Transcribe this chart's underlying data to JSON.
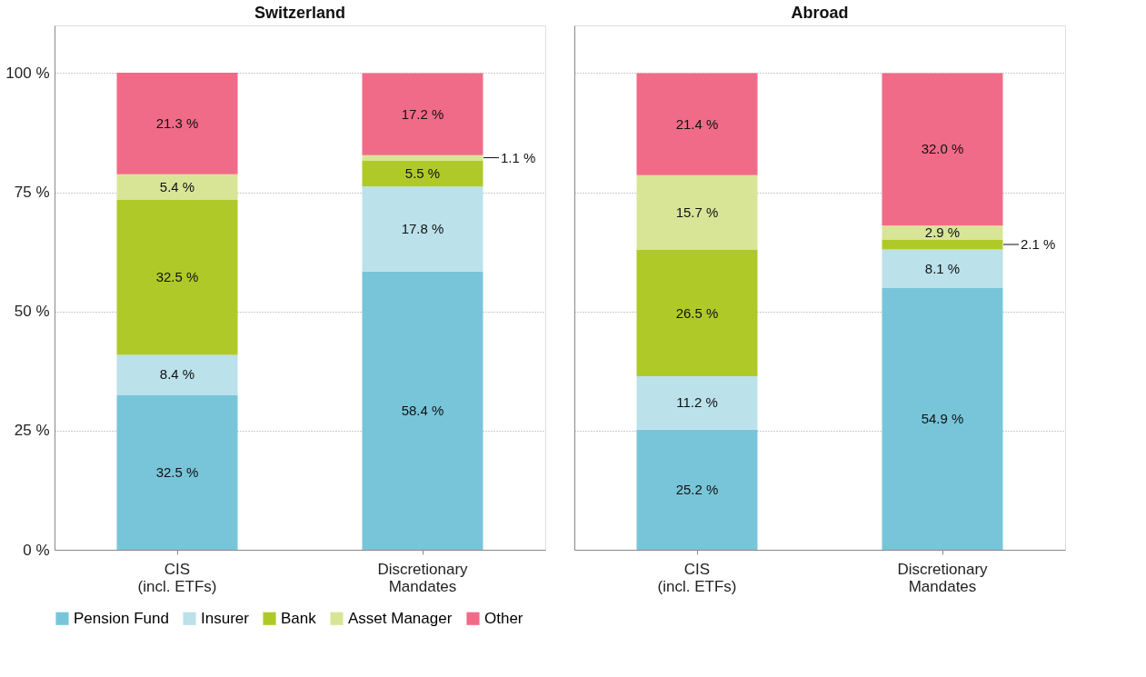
{
  "chart_data": [
    {
      "type": "bar",
      "stacked": true,
      "title": "Switzerland",
      "categories": [
        "CIS (incl. ETFs)",
        "Discretionary Mandates"
      ],
      "ylim": [
        0,
        110
      ],
      "yticks": [
        {
          "value": 0,
          "label": "0 %"
        },
        {
          "value": 25,
          "label": "25 %"
        },
        {
          "value": 50,
          "label": "50 %"
        },
        {
          "value": 75,
          "label": "75 %"
        },
        {
          "value": 100,
          "label": "100 %"
        }
      ],
      "grid": "y",
      "legend": "bottom",
      "series": [
        {
          "name": "Pension Fund",
          "color": "#78c5d9",
          "values": [
            32.5,
            58.4
          ],
          "value_labels": [
            "32.5 %",
            "58.4 %"
          ]
        },
        {
          "name": "Insurer",
          "color": "#bbe1ea",
          "values": [
            8.4,
            17.8
          ],
          "value_labels": [
            "8.4 %",
            "17.8 %"
          ]
        },
        {
          "name": "Bank",
          "color": "#afca28",
          "values": [
            32.5,
            5.5
          ],
          "value_labels": [
            "32.5 %",
            "5.5 %"
          ]
        },
        {
          "name": "Asset Manager",
          "color": "#d8e597",
          "values": [
            5.4,
            1.1
          ],
          "value_labels": [
            "5.4 %",
            "1.1 %"
          ]
        },
        {
          "name": "Other",
          "color": "#f06b87",
          "values": [
            21.3,
            17.2
          ],
          "value_labels": [
            "21.3 %",
            "17.2 %"
          ]
        }
      ]
    },
    {
      "type": "bar",
      "stacked": true,
      "title": "Abroad",
      "categories": [
        "CIS (incl. ETFs)",
        "Discretionary Mandates"
      ],
      "ylim": [
        0,
        110
      ],
      "yticks": [
        {
          "value": 0,
          "label": null
        },
        {
          "value": 25,
          "label": null
        },
        {
          "value": 50,
          "label": null
        },
        {
          "value": 75,
          "label": null
        },
        {
          "value": 100,
          "label": null
        }
      ],
      "grid": "y",
      "legend": "bottom",
      "tick_labels": "x",
      "series": [
        {
          "name": "Pension Fund",
          "color": "#78c5d9",
          "values": [
            25.2,
            54.9
          ],
          "value_labels": [
            "25.2 %",
            "54.9 %"
          ]
        },
        {
          "name": "Insurer",
          "color": "#bbe1ea",
          "values": [
            11.2,
            8.1
          ],
          "value_labels": [
            "11.2 %",
            "8.1 %"
          ]
        },
        {
          "name": "Bank",
          "color": "#afca28",
          "values": [
            26.5,
            2.1
          ],
          "value_labels": [
            "26.5 %",
            "2.1 %"
          ]
        },
        {
          "name": "Asset Manager",
          "color": "#d8e597",
          "values": [
            15.7,
            2.9
          ],
          "value_labels": [
            "15.7 %",
            "2.9 %"
          ]
        },
        {
          "name": "Other",
          "color": "#f06b87",
          "values": [
            21.4,
            32.0
          ],
          "value_labels": [
            "21.4 %",
            "32.0 %"
          ]
        }
      ]
    }
  ]
}
